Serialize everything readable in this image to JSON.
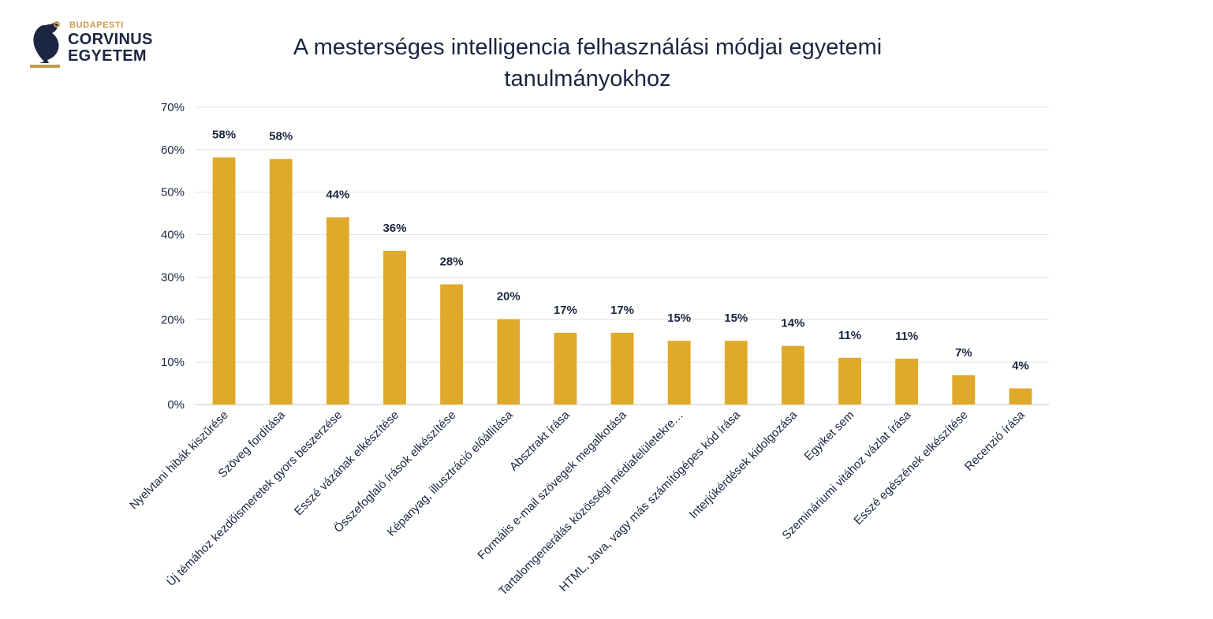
{
  "logo": {
    "line1": "BUDAPESTI",
    "line2": "CORVINUS",
    "line3": "EGYETEM",
    "color_gold": "#c59b4b",
    "color_navy": "#1c2541"
  },
  "chart_data": {
    "type": "bar",
    "title": "A mesterséges intelligencia felhasználási módjai egyetemi tanulmányokhoz",
    "bar_color": "#e0a92a",
    "grid": true,
    "legend": "none",
    "ylim": [
      0,
      70
    ],
    "yticks": [
      0,
      10,
      20,
      30,
      40,
      50,
      60,
      70
    ],
    "ytick_labels": [
      "0%",
      "10%",
      "20%",
      "30%",
      "40%",
      "50%",
      "60%",
      "70%"
    ],
    "categories": [
      "Nyelvtani hibák kiszűrése",
      "Szöveg fordítása",
      "Új témához kezdőismeretek gyors beszerzése",
      "Esszé vázának elkészítése",
      "Összefoglaló írások elkészítése",
      "Képanyag, illusztráció előállítása",
      "Absztrakt írása",
      "Formális e-mail szövegek megalkotása",
      "Tartalomgenerálás közösségi médiafelületekre…",
      "HTML, Java, vagy más számítógépes kód írása",
      "Interjúkérdések kidolgozása",
      "Egyiket sem",
      "Szemináriumi vitához vázlat írása",
      "Esszé egészének elkészítése",
      "Recenzió írása"
    ],
    "values": [
      58.2,
      57.8,
      44.1,
      36.2,
      28.3,
      20.1,
      16.9,
      16.9,
      15.0,
      15.0,
      13.8,
      11.0,
      10.8,
      6.9,
      3.8
    ],
    "data_labels": [
      "58%",
      "58%",
      "44%",
      "36%",
      "28%",
      "20%",
      "17%",
      "17%",
      "15%",
      "15%",
      "14%",
      "11%",
      "11%",
      "7%",
      "4%"
    ]
  }
}
